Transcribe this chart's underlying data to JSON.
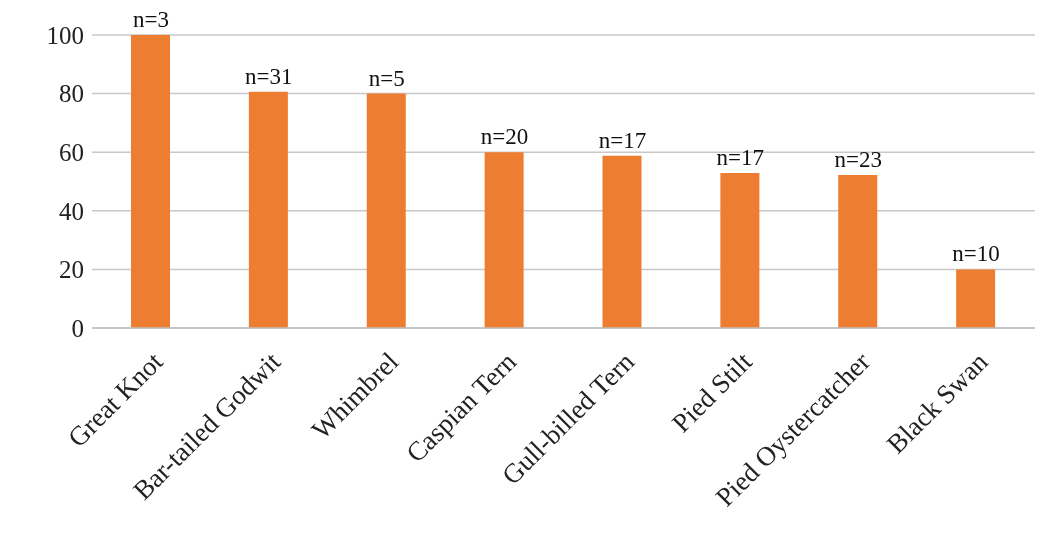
{
  "chart_data": {
    "type": "bar",
    "categories": [
      "Great Knot",
      "Bar-tailed Godwit",
      "Whimbrel",
      "Caspian Tern",
      "Gull-billed Tern",
      "Pied Stilt",
      "Pied Oystercatcher",
      "Black Swan"
    ],
    "values": [
      100,
      80.6,
      80,
      60,
      58.8,
      52.9,
      52.2,
      20
    ],
    "annotations": [
      {
        "text": "n=3",
        "x": "Great Knot",
        "y": 100
      },
      {
        "text": "n=31",
        "x": "Bar-tailed Godwit",
        "y": 80.6
      },
      {
        "text": "n=5",
        "x": "Whimbrel",
        "y": 80
      },
      {
        "text": "n=20",
        "x": "Caspian Tern",
        "y": 60
      },
      {
        "text": "n=17",
        "x": "Gull-billed Tern",
        "y": 58.8
      },
      {
        "text": "n=17",
        "x": "Pied Stilt",
        "y": 52.9
      },
      {
        "text": "n=23",
        "x": "Pied Oystercatcher",
        "y": 52.2
      },
      {
        "text": "n=10",
        "x": "Black Swan",
        "y": 20
      }
    ],
    "color": "#ed7d31",
    "ylim": [
      0,
      100
    ],
    "yticks": [
      0,
      20,
      40,
      60,
      80,
      100
    ],
    "grid": "y"
  }
}
